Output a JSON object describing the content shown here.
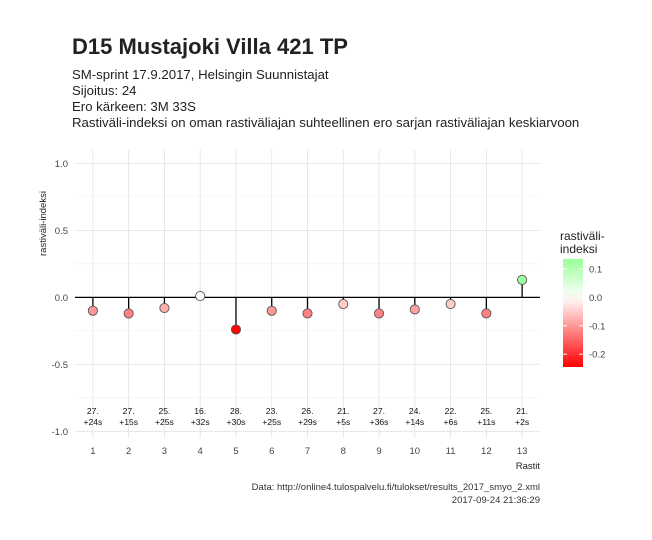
{
  "title": "D15 Mustajoki Villa 421 TP",
  "subtitle_lines": [
    "SM-sprint 17.9.2017, Helsingin Suunnistajat",
    "Sijoitus: 24",
    "Ero kärkeen: 3M 33S",
    "Rastiväli-indeksi on oman rastiväliajan suhteellinen ero sarjan rastiväliajan keskiarvoon"
  ],
  "caption_lines": [
    "Data: http://online4.tulospalvelu.fi/tulokset/results_2017_smyo_2.xml",
    "2017-09-24 21:36:29"
  ],
  "chart_data": {
    "type": "scatter",
    "xlabel": "Rastit",
    "ylabel": "rastiväli-indeksi",
    "x": [
      1,
      2,
      3,
      4,
      5,
      6,
      7,
      8,
      9,
      10,
      11,
      12,
      13
    ],
    "values": [
      -0.1,
      -0.12,
      -0.08,
      0.01,
      -0.24,
      -0.1,
      -0.12,
      -0.05,
      -0.12,
      -0.09,
      -0.05,
      -0.12,
      0.13
    ],
    "point_labels": [
      [
        "27.",
        "+24s"
      ],
      [
        "27.",
        "+15s"
      ],
      [
        "25.",
        "+25s"
      ],
      [
        "16.",
        "+32s"
      ],
      [
        "28.",
        "+30s"
      ],
      [
        "23.",
        "+25s"
      ],
      [
        "26.",
        "+29s"
      ],
      [
        "21.",
        "+5s"
      ],
      [
        "27.",
        "+36s"
      ],
      [
        "24.",
        "+14s"
      ],
      [
        "22.",
        "+6s"
      ],
      [
        "25.",
        "+11s"
      ],
      [
        "21.",
        "+2s"
      ]
    ],
    "xlim": [
      0.5,
      13.5
    ],
    "ylim": [
      -1.05,
      1.1
    ],
    "yticks": [
      -1.0,
      -0.5,
      0.0,
      0.5,
      1.0
    ],
    "ytick_labels": [
      "-1.0",
      "-0.5",
      "0.0",
      "0.5",
      "1.0"
    ],
    "grid": true,
    "legend": {
      "title_lines": [
        "rastiväli-",
        "indeksi"
      ],
      "position": "right",
      "ticks": [
        0.1,
        0.0,
        -0.1,
        -0.2
      ],
      "tick_labels": [
        "0.1",
        "0.0",
        "-0.1",
        "-0.2"
      ],
      "range": [
        -0.245,
        0.135
      ],
      "colors": {
        "high": "#99ff99",
        "mid": "#ffffff",
        "low": "#ff0000"
      }
    }
  }
}
